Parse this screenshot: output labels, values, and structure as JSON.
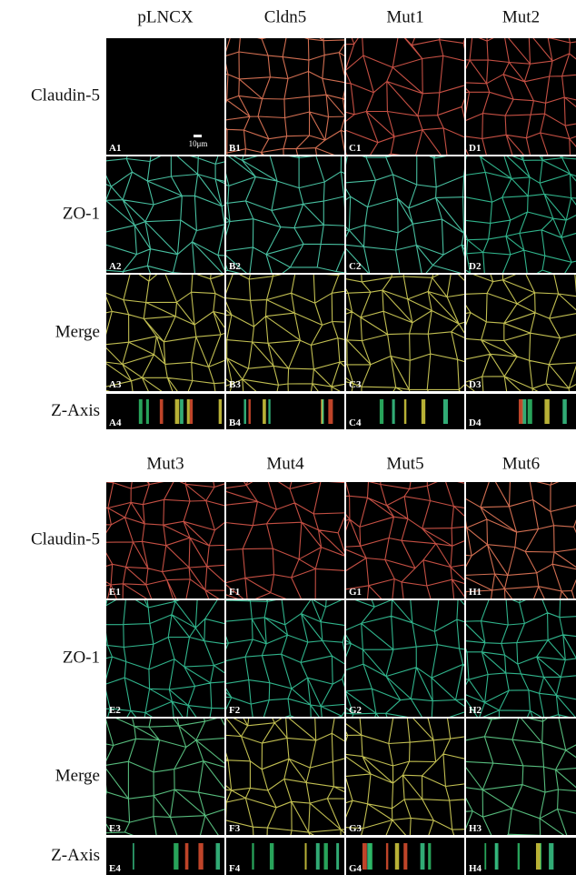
{
  "blocks": [
    {
      "columns": [
        "pLNCX",
        "Cldn5",
        "Mut1",
        "Mut2"
      ],
      "rows": [
        "Claudin-5",
        "ZO-1",
        "Merge",
        "Z-Axis"
      ],
      "panels": [
        [
          "A1",
          "B1",
          "C1",
          "D1"
        ],
        [
          "A2",
          "B2",
          "C2",
          "D2"
        ],
        [
          "A3",
          "B3",
          "C3",
          "D3"
        ],
        [
          "A4",
          "B4",
          "C4",
          "D4"
        ]
      ]
    },
    {
      "columns": [
        "Mut3",
        "Mut4",
        "Mut5",
        "Mut6"
      ],
      "rows": [
        "Claudin-5",
        "ZO-1",
        "Merge",
        "Z-Axis"
      ],
      "panels": [
        [
          "E1",
          "F1",
          "G1",
          "H1"
        ],
        [
          "E2",
          "F2",
          "G2",
          "H2"
        ],
        [
          "E3",
          "F3",
          "G3",
          "H3"
        ],
        [
          "E4",
          "F4",
          "G4",
          "H4"
        ]
      ]
    }
  ],
  "scale_bar": "10μm"
}
